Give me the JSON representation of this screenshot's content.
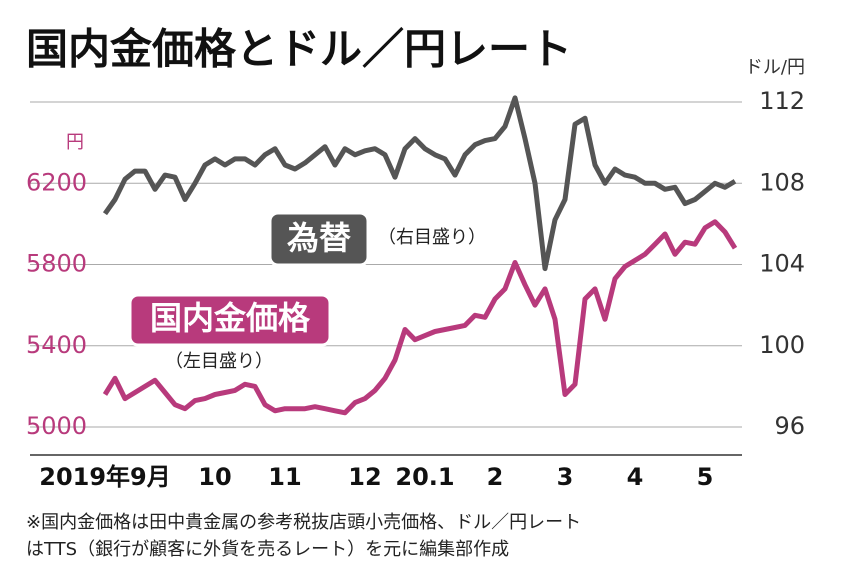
{
  "chart_data": {
    "type": "line",
    "title": "国内金価格とドル／円レート",
    "y_label": "円",
    "y2_label": "ドル/円",
    "categories": [
      "2019年9月",
      null,
      null,
      null,
      null,
      null,
      null,
      null,
      null,
      null,
      null,
      "10",
      null,
      null,
      null,
      null,
      null,
      null,
      "11",
      null,
      null,
      null,
      null,
      null,
      null,
      null,
      "12",
      null,
      null,
      null,
      null,
      null,
      "20.1",
      null,
      null,
      null,
      null,
      null,
      null,
      "2",
      null,
      null,
      null,
      null,
      null,
      null,
      "3",
      null,
      null,
      null,
      null,
      null,
      null,
      "4",
      null,
      null,
      null,
      null,
      null,
      null,
      "5",
      null,
      null,
      null
    ],
    "series": [
      {
        "name": "国内金価格",
        "color": "#b83a7c",
        "axis": "y",
        "values": [
          5160,
          5240,
          5140,
          5170,
          5200,
          5230,
          5170,
          5110,
          5090,
          5130,
          5140,
          5160,
          5170,
          5180,
          5210,
          5200,
          5110,
          5080,
          5090,
          5090,
          5090,
          5100,
          5090,
          5080,
          5070,
          5120,
          5140,
          5180,
          5240,
          5330,
          5480,
          5430,
          5450,
          5470,
          5480,
          5490,
          5500,
          5550,
          5540,
          5630,
          5680,
          5810,
          5700,
          5600,
          5680,
          5530,
          5160,
          5210,
          5630,
          5680,
          5530,
          5730,
          5790,
          5820,
          5850,
          5900,
          5950,
          5850,
          5910,
          5900,
          5980,
          6010,
          5960,
          5880
        ]
      },
      {
        "name": "為替",
        "color": "#555555",
        "axis": "y2",
        "values": [
          106.5,
          107.2,
          108.2,
          108.6,
          108.6,
          107.7,
          108.4,
          108.3,
          107.2,
          108.0,
          108.9,
          109.2,
          108.9,
          109.2,
          109.2,
          108.9,
          109.4,
          109.7,
          108.9,
          108.7,
          109.0,
          109.4,
          109.8,
          108.9,
          109.7,
          109.4,
          109.6,
          109.7,
          109.4,
          108.3,
          109.7,
          110.2,
          109.7,
          109.4,
          109.2,
          108.4,
          109.4,
          109.9,
          110.1,
          110.2,
          110.8,
          112.2,
          110.2,
          108.0,
          103.8,
          106.2,
          107.2,
          110.9,
          111.2,
          108.9,
          108.0,
          108.7,
          108.4,
          108.3,
          108.0,
          108.0,
          107.7,
          107.8,
          107.0,
          107.2,
          107.6,
          108.0,
          107.8,
          108.1
        ]
      }
    ],
    "annotations": [
      "（右目盛り）",
      "（左目盛り）"
    ],
    "ylim": [
      5000,
      6600
    ],
    "yticks": [
      6200,
      5800,
      5400,
      5000
    ],
    "y2lim": [
      96,
      112
    ],
    "y2ticks": [
      112,
      108,
      104,
      100,
      96
    ],
    "grid": true,
    "footnote": [
      "※国内金価格は田中貴金属の参考税抜店頭小売価格、ドル／円レート",
      "はTTS（銀行が顧客に外貨を売るレート）を元に編集部作成"
    ]
  }
}
